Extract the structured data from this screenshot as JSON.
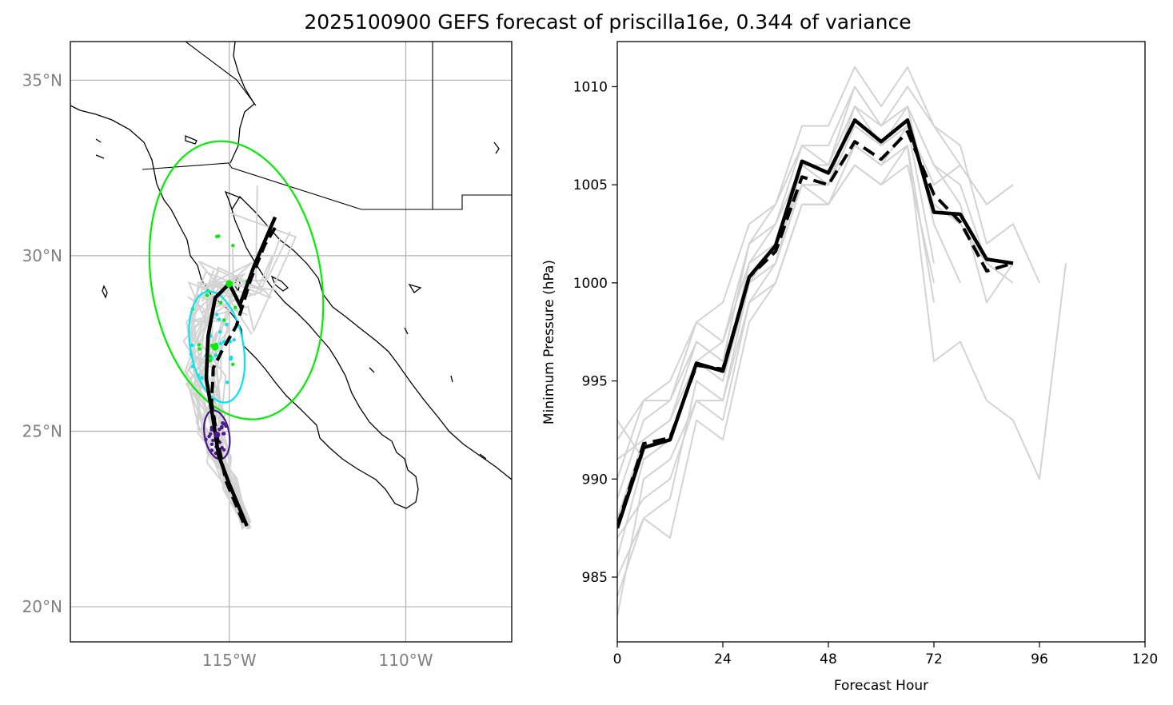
{
  "figure": {
    "title": "2025100900 GEFS forecast of priscilla16e, 0.344 of variance"
  },
  "map_panel": {
    "lat_ticks": [
      "35°N",
      "30°N",
      "25°N",
      "20°N"
    ],
    "lon_ticks": [
      "115°W",
      "110°W"
    ],
    "colors": {
      "member_tracks": "#d3d3d3",
      "mean_track": "#000000",
      "early_points": "#4b1a8c",
      "mid_points": "#00e5ee",
      "late_points": "#00ee00"
    }
  },
  "chart_data": [
    {
      "type": "map",
      "extent": {
        "lon": [
          -119.5,
          -107.0
        ],
        "lat": [
          19.0,
          36.1
        ]
      },
      "lat_gridlines": [
        35,
        30,
        25,
        20
      ],
      "lon_gridlines": [
        -115,
        -110
      ],
      "grid": true,
      "mean_track": [
        {
          "lon": -114.5,
          "lat": 22.3
        },
        {
          "lon": -115.0,
          "lat": 23.5
        },
        {
          "lon": -115.3,
          "lat": 24.3
        },
        {
          "lon": -115.45,
          "lat": 25.3
        },
        {
          "lon": -115.65,
          "lat": 26.5
        },
        {
          "lon": -115.6,
          "lat": 27.7
        },
        {
          "lon": -115.4,
          "lat": 28.8
        },
        {
          "lon": -115.0,
          "lat": 29.2
        },
        {
          "lon": -114.7,
          "lat": 28.6
        },
        {
          "lon": -114.3,
          "lat": 29.7
        },
        {
          "lon": -113.7,
          "lat": 31.1
        }
      ],
      "consensus_track": [
        {
          "lon": -114.6,
          "lat": 22.4
        },
        {
          "lon": -115.1,
          "lat": 23.6
        },
        {
          "lon": -115.3,
          "lat": 24.6
        },
        {
          "lon": -115.5,
          "lat": 25.8
        },
        {
          "lon": -115.45,
          "lat": 26.8
        },
        {
          "lon": -115.2,
          "lat": 27.3
        },
        {
          "lon": -114.8,
          "lat": 28.0
        },
        {
          "lon": -114.4,
          "lat": 29.3
        },
        {
          "lon": -114.0,
          "lat": 30.3
        },
        {
          "lon": -113.7,
          "lat": 30.8
        }
      ],
      "uncertainty_ellipses": [
        {
          "name": "early",
          "center": [
            -115.35,
            24.9
          ],
          "semi_axes_deg": [
            0.35,
            0.7
          ],
          "color": "#4b1a8c"
        },
        {
          "name": "mid",
          "center": [
            -115.35,
            27.4
          ],
          "semi_axes_deg": [
            0.75,
            1.6
          ],
          "color": "#00e5ee"
        },
        {
          "name": "late",
          "center": [
            -114.8,
            29.3
          ],
          "semi_axes_deg": [
            2.4,
            4.0
          ],
          "color": "#00ee00"
        }
      ]
    },
    {
      "type": "line",
      "xlabel": "Forecast Hour",
      "ylabel": "Minimum Pressure (hPa)",
      "xlim": [
        0,
        120
      ],
      "ylim": [
        981.7,
        1012.3
      ],
      "xticks": [
        0,
        24,
        48,
        72,
        96,
        120
      ],
      "yticks": [
        985,
        990,
        995,
        1000,
        1005,
        1010
      ],
      "grid": false,
      "series": [
        {
          "style": "mean-solid",
          "color": "#000000",
          "x": [
            0,
            6,
            12,
            18,
            24,
            30,
            36,
            42,
            48,
            54,
            60,
            66,
            72,
            78,
            84,
            90
          ],
          "values": [
            987.5,
            991.6,
            992.0,
            995.9,
            995.5,
            1000.3,
            1001.9,
            1006.2,
            1005.6,
            1008.3,
            1007.2,
            1008.3,
            1003.6,
            1003.5,
            1001.2,
            1001.0
          ]
        },
        {
          "style": "consensus-dashed",
          "color": "#000000",
          "x": [
            0,
            6,
            12,
            18,
            24,
            30,
            36,
            42,
            48,
            54,
            60,
            66,
            72,
            78,
            84,
            90
          ],
          "values": [
            987.6,
            991.8,
            992.1,
            995.8,
            995.6,
            1000.3,
            1001.6,
            1005.4,
            1005.0,
            1007.2,
            1006.3,
            1007.7,
            1004.5,
            1003.1,
            1000.6,
            1001.0
          ]
        },
        {
          "style": "member",
          "color": "#d3d3d3",
          "x": [
            0,
            6,
            12,
            18,
            24,
            30,
            36,
            42,
            48,
            54,
            60,
            66,
            72,
            78,
            84,
            90
          ],
          "values": [
            988,
            992,
            993,
            996,
            997,
            1001,
            1003,
            1007,
            1007,
            1010,
            1008,
            1010,
            1008,
            1006,
            1004,
            1005
          ]
        },
        {
          "style": "member",
          "color": "#d3d3d3",
          "x": [
            0,
            6,
            12,
            18,
            24,
            30,
            36,
            42,
            48,
            54,
            60,
            66,
            72,
            78,
            84,
            90,
            96
          ],
          "values": [
            990,
            994,
            995,
            998,
            999,
            1003,
            1004,
            1008,
            1008,
            1011,
            1009,
            1011,
            1008,
            1007,
            1002,
            1003,
            1000
          ]
        },
        {
          "style": "member",
          "color": "#d3d3d3",
          "x": [
            0,
            6,
            12,
            18,
            24,
            30,
            36,
            42,
            48,
            54,
            60,
            66,
            72
          ],
          "values": [
            985,
            988,
            987,
            993,
            992,
            998,
            1000,
            1004,
            1004,
            1006,
            1005,
            1006,
            1000
          ]
        },
        {
          "style": "member",
          "color": "#d3d3d3",
          "x": [
            0,
            6,
            12,
            18,
            24,
            30,
            36,
            42,
            48,
            54,
            60,
            66,
            72,
            78,
            84,
            90,
            96,
            102
          ],
          "values": [
            983,
            990,
            991,
            994,
            993,
            999,
            1001,
            1005,
            1005,
            1007,
            1006,
            1007,
            996,
            997,
            994,
            993,
            990,
            1001
          ]
        },
        {
          "style": "member",
          "color": "#d3d3d3",
          "x": [
            0,
            6,
            12,
            18,
            24,
            30,
            36,
            42,
            48,
            54,
            60,
            66,
            72,
            78,
            84,
            90
          ],
          "values": [
            989,
            993,
            994,
            997,
            996,
            1002,
            1003,
            1006,
            1006,
            1009,
            1008,
            1009,
            1006,
            1004,
            999,
            1001
          ]
        },
        {
          "style": "member",
          "color": "#d3d3d3",
          "x": [
            0,
            6,
            12,
            18,
            24,
            30,
            36,
            42,
            48,
            54,
            60,
            66,
            72,
            78,
            84,
            90
          ],
          "values": [
            986,
            991,
            992,
            996,
            995,
            1000,
            1002,
            1006,
            1005,
            1008,
            1007,
            1008,
            1004,
            1003,
            1001,
            1000
          ]
        },
        {
          "style": "member",
          "color": "#d3d3d3",
          "x": [
            0,
            6,
            12,
            18,
            24,
            30,
            36,
            42,
            48,
            54,
            60,
            66,
            72,
            78,
            84,
            90
          ],
          "values": [
            991,
            992,
            993,
            997,
            996,
            1000,
            1002,
            1005,
            1004,
            1007,
            1006,
            1008,
            1005,
            1006,
            1004,
            1005
          ]
        },
        {
          "style": "member",
          "color": "#d3d3d3",
          "x": [
            0,
            6,
            12,
            18,
            24,
            30,
            36,
            42,
            48,
            54,
            60,
            66,
            72
          ],
          "values": [
            987,
            989,
            990,
            994,
            994,
            999,
            1000,
            1004,
            1004,
            1006,
            1005,
            1007,
            999
          ]
        },
        {
          "style": "member",
          "color": "#d3d3d3",
          "x": [
            0,
            6,
            12,
            18,
            24,
            30,
            36,
            42,
            48,
            54,
            60,
            66,
            72,
            78
          ],
          "values": [
            984,
            988,
            989,
            995,
            994,
            1000,
            1001,
            1006,
            1005,
            1009,
            1007,
            1009,
            1003,
            1000
          ]
        },
        {
          "style": "member",
          "color": "#d3d3d3",
          "x": [
            0,
            6,
            12,
            18,
            24,
            30,
            36,
            42,
            48,
            54,
            60,
            66,
            72,
            78,
            84
          ],
          "values": [
            992,
            994,
            994,
            998,
            997,
            1002,
            1004,
            1007,
            1006,
            1010,
            1008,
            1009,
            1006,
            1005,
            1001
          ]
        },
        {
          "style": "member",
          "color": "#d3d3d3",
          "x": [
            0,
            6,
            12,
            18,
            24,
            30,
            36,
            42,
            48,
            54,
            60,
            66,
            72
          ],
          "values": [
            993,
            991,
            992,
            996,
            995,
            1001,
            1002,
            1005,
            1005,
            1008,
            1007,
            1008,
            1001
          ]
        }
      ]
    }
  ]
}
